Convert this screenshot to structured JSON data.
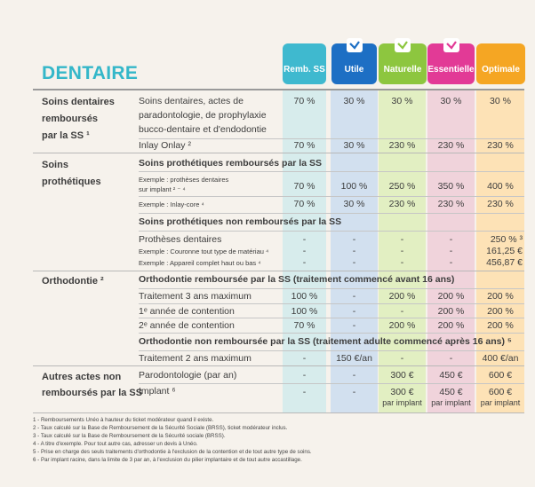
{
  "title": "DENTAIRE",
  "plans": [
    {
      "name": "Remb. SS",
      "checked": false,
      "color": "#3fb9cf"
    },
    {
      "name": "Utile",
      "checked": true,
      "color": "#1d6fc4"
    },
    {
      "name": "Naturelle",
      "checked": true,
      "color": "#8dc63f"
    },
    {
      "name": "Essentielle",
      "checked": true,
      "color": "#e23a96"
    },
    {
      "name": "Optimale",
      "checked": false,
      "color": "#f5a623"
    }
  ],
  "sections": {
    "s1": {
      "l1": "Soins dentaires",
      "l2": "remboursés",
      "l3": "par la SS ¹"
    },
    "s2": {
      "l1": "Soins",
      "l2": "prothétiques"
    },
    "s3": {
      "l1": "Orthodontie ²"
    },
    "s4": {
      "l1": "Autres actes non",
      "l2": "remboursés par la SS"
    }
  },
  "rows": {
    "soins": {
      "l1": "Soins dentaires, actes de",
      "l2": "paradontologie, de prophylaxie",
      "l3": "bucco-dentaire et d'endodontie",
      "v": [
        "70 %",
        "30 %",
        "30 %",
        "30 %",
        "30 %"
      ]
    },
    "inlay": {
      "label": "Inlay Onlay ²",
      "v": [
        "70 %",
        "30 %",
        "230 %",
        "230 %",
        "230 %"
      ]
    },
    "proth_remb_head": "Soins prothétiques remboursés par la SS",
    "ex1": {
      "l1": "Exemple : prothèses dentaires",
      "l2": "sur implant ² ⁻ ⁴",
      "v": [
        "70 %",
        "100 %",
        "250 %",
        "350 %",
        "400 %"
      ]
    },
    "ex2": {
      "label": "Exemple : Inlay-core ⁴",
      "v": [
        "70 %",
        "30 %",
        "230 %",
        "230 %",
        "230 %"
      ]
    },
    "proth_nonremb_head": "Soins prothétiques non remboursés par la SS",
    "pd": {
      "label": "Prothèses dentaires",
      "v": [
        "-",
        "-",
        "-",
        "-",
        "250 % ³"
      ]
    },
    "pd_ex1": {
      "label": "Exemple : Couronne tout type de matériau ⁴",
      "v": [
        "-",
        "-",
        "-",
        "-",
        "161,25 €"
      ]
    },
    "pd_ex2": {
      "label": "Exemple : Appareil complet haut ou bas ⁴",
      "v": [
        "-",
        "-",
        "-",
        "-",
        "456,87 €"
      ]
    },
    "ortho_remb_head": "Orthodontie remboursée par la SS (traitement commencé avant 16 ans)",
    "ortho1": {
      "label": "Traitement 3 ans maximum",
      "v": [
        "100 %",
        "-",
        "200 %",
        "200 %",
        "200 %"
      ]
    },
    "ortho2": {
      "label": "1ᵉ année de contention",
      "v": [
        "100 %",
        "-",
        "-",
        "200 %",
        "200 %"
      ]
    },
    "ortho3": {
      "label": "2ᵉ année de contention",
      "v": [
        "70 %",
        "-",
        "200 %",
        "200 %",
        "200 %"
      ]
    },
    "ortho_nonremb_head": "Orthodontie non remboursée par la SS (traitement adulte commencé après 16 ans) ⁵",
    "ortho4": {
      "label": "Traitement 2 ans maximum",
      "v": [
        "-",
        "150 €/an",
        "-",
        "-",
        "400 €/an"
      ]
    },
    "paro": {
      "label": "Parodontologie (par an)",
      "v": [
        "-",
        "-",
        "300 €",
        "450 €",
        "600 €"
      ]
    },
    "implant": {
      "label": "Implant ⁶",
      "v": [
        "-",
        "-",
        "300 €",
        "450 €",
        "600 €"
      ],
      "per": "par implant"
    }
  },
  "footnotes": [
    "1 - Remboursements Unéo à hauteur du ticket modérateur quand il existe.",
    "2 - Taux calculé sur la Base de Remboursement de la Sécurité Sociale (BRSS), ticket modérateur inclus.",
    "3 - Taux calculé sur la Base de Remboursement de la Sécurité sociale (BRSS).",
    "4 - A titre d'exemple. Pour tout autre cas, adresser un devis à Unéo.",
    "5 - Prise en charge des seuls traitements d'orthodontie à l'exclusion de la contention et de tout autre type de soins.",
    "6 - Par implant racine, dans la limite de 3 par an, à l'exclusion du pilier implantaire et de tout autre accastillage."
  ]
}
